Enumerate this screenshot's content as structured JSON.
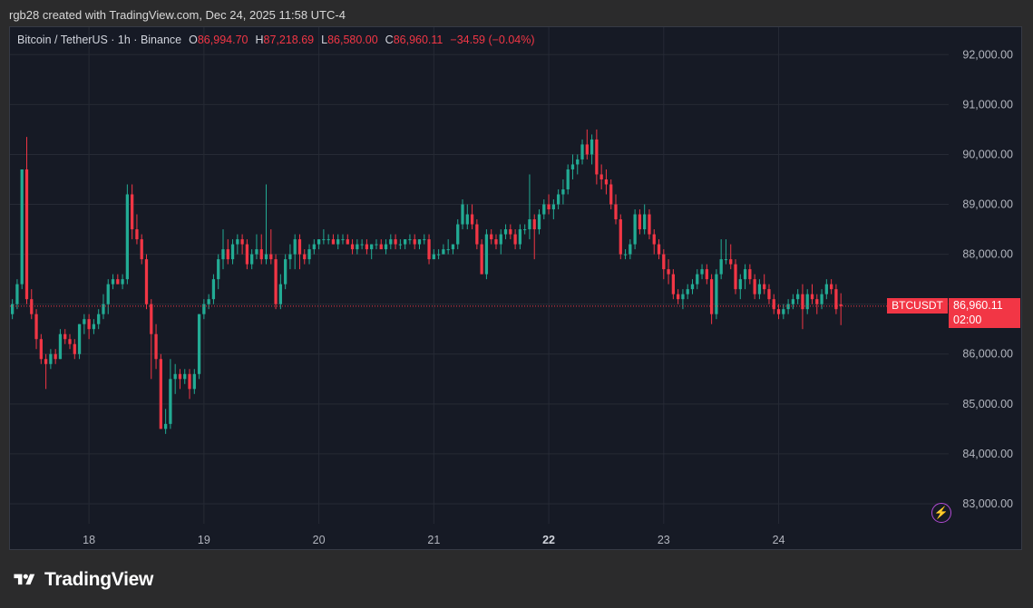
{
  "caption": "rgb28 created with TradingView.com, Dec 24, 2025 11:58 UTC-4",
  "legend": {
    "symbol": "Bitcoin / TetherUS · 1h · Binance",
    "o_label": "O",
    "o_value": "86,994.70",
    "h_label": "H",
    "h_value": "87,218.69",
    "l_label": "L",
    "l_value": "86,580.00",
    "c_label": "C",
    "c_value": "86,960.11",
    "change": "−34.59 (−0.04%)"
  },
  "last_price": {
    "symbol": "BTCUSDT",
    "value": "86,960.11",
    "countdown": "02:00"
  },
  "brand": {
    "name": "TradingView"
  },
  "colors": {
    "up": "#22ab94",
    "down": "#f23645",
    "grid": "#262a35",
    "axis_text": "#b2b5be",
    "background": "#161a25"
  },
  "icons": [
    "tradingview-logo-icon",
    "lightning-bolt-icon"
  ],
  "chart_data": {
    "type": "candlestick",
    "title": "",
    "xlabel": "",
    "ylabel": "",
    "interval": "1h",
    "y_ticks": [
      "83,000.00",
      "84,000.00",
      "85,000.00",
      "86,000.00",
      "87,000.00",
      "88,000.00",
      "89,000.00",
      "90,000.00",
      "91,000.00",
      "92,000.00"
    ],
    "y_tick_values": [
      83000,
      84000,
      85000,
      86000,
      87000,
      88000,
      89000,
      90000,
      91000,
      92000
    ],
    "x_ticks": [
      "18",
      "19",
      "20",
      "21",
      "22",
      "23",
      "24"
    ],
    "x_tick_hours": [
      0,
      24,
      48,
      72,
      96,
      120,
      144
    ],
    "bold_x_tick": "22",
    "ylim": [
      82600,
      92550
    ],
    "xlim_hours": [
      -16.5,
      179.5
    ],
    "last_close": 86960.11,
    "grid": true,
    "legend": "top-left",
    "ohlc": [
      [
        -16,
        86800,
        87100,
        86700,
        87000
      ],
      [
        -15,
        87000,
        87500,
        86900,
        87400
      ],
      [
        -14,
        87400,
        89700,
        87300,
        89700
      ],
      [
        -13,
        89700,
        90350,
        87000,
        87100
      ],
      [
        -12,
        87100,
        87300,
        86700,
        86800
      ],
      [
        -11,
        86800,
        86900,
        86100,
        86300
      ],
      [
        -10,
        86300,
        86400,
        85800,
        85900
      ],
      [
        -9,
        85900,
        86000,
        85300,
        85800
      ],
      [
        -8,
        85800,
        86100,
        85700,
        86000
      ],
      [
        -7,
        86000,
        86100,
        85800,
        85900
      ],
      [
        -6,
        85900,
        86500,
        85900,
        86400
      ],
      [
        -5,
        86400,
        86500,
        86200,
        86300
      ],
      [
        -4,
        86300,
        86400,
        86100,
        86200
      ],
      [
        -3,
        86200,
        86300,
        85900,
        86000
      ],
      [
        -2,
        86000,
        86600,
        85900,
        86600
      ],
      [
        -1,
        86600,
        86800,
        86400,
        86700
      ],
      [
        0,
        86700,
        86800,
        86300,
        86500
      ],
      [
        1,
        86500,
        86700,
        86400,
        86600
      ],
      [
        2,
        86600,
        86900,
        86500,
        86800
      ],
      [
        3,
        86800,
        87200,
        86700,
        87000
      ],
      [
        4,
        87000,
        87500,
        86800,
        87400
      ],
      [
        5,
        87400,
        87600,
        87300,
        87500
      ],
      [
        6,
        87500,
        87600,
        87400,
        87400
      ],
      [
        7,
        87400,
        87600,
        87300,
        87500
      ],
      [
        8,
        87500,
        89400,
        87400,
        89200
      ],
      [
        9,
        89200,
        89400,
        88300,
        88500
      ],
      [
        10,
        88500,
        88800,
        88200,
        88300
      ],
      [
        11,
        88300,
        88400,
        87800,
        87900
      ],
      [
        12,
        87900,
        88000,
        86900,
        87000
      ],
      [
        13,
        87000,
        87100,
        85500,
        86400
      ],
      [
        14,
        86400,
        86600,
        85700,
        85900
      ],
      [
        15,
        85900,
        86000,
        84500,
        84500
      ],
      [
        16,
        84500,
        84900,
        84400,
        84600
      ],
      [
        17,
        84600,
        85900,
        84500,
        85500
      ],
      [
        18,
        85500,
        85800,
        85200,
        85600
      ],
      [
        19,
        85600,
        85700,
        85300,
        85500
      ],
      [
        20,
        85500,
        85700,
        85400,
        85600
      ],
      [
        21,
        85600,
        85700,
        85100,
        85300
      ],
      [
        22,
        85300,
        85700,
        85200,
        85600
      ],
      [
        23,
        85600,
        86800,
        85500,
        86800
      ],
      [
        24,
        86800,
        87100,
        86700,
        87000
      ],
      [
        25,
        87000,
        87200,
        86900,
        87100
      ],
      [
        26,
        87100,
        87600,
        87000,
        87500
      ],
      [
        27,
        87500,
        88000,
        87300,
        87900
      ],
      [
        28,
        87900,
        88500,
        87700,
        88100
      ],
      [
        29,
        88100,
        88300,
        87800,
        87900
      ],
      [
        30,
        87900,
        88300,
        87800,
        88200
      ],
      [
        31,
        88200,
        88400,
        88000,
        88300
      ],
      [
        32,
        88300,
        88400,
        88000,
        88200
      ],
      [
        33,
        88200,
        88300,
        87700,
        87800
      ],
      [
        34,
        87800,
        88100,
        87700,
        88000
      ],
      [
        35,
        88000,
        88400,
        87900,
        88100
      ],
      [
        36,
        88100,
        88400,
        87800,
        87900
      ],
      [
        37,
        87900,
        89400,
        87800,
        88000
      ],
      [
        38,
        88000,
        88500,
        87800,
        87900
      ],
      [
        39,
        87900,
        88000,
        86900,
        87000
      ],
      [
        40,
        87000,
        87600,
        86900,
        87400
      ],
      [
        41,
        87400,
        88000,
        87300,
        87900
      ],
      [
        42,
        87900,
        88200,
        87700,
        88000
      ],
      [
        43,
        88000,
        88400,
        87700,
        88300
      ],
      [
        44,
        88300,
        88400,
        87700,
        88000
      ],
      [
        45,
        88000,
        88100,
        87800,
        87900
      ],
      [
        46,
        87900,
        88200,
        87800,
        88100
      ],
      [
        47,
        88100,
        88300,
        88000,
        88200
      ],
      [
        48,
        88200,
        88300,
        88100,
        88300
      ],
      [
        49,
        88300,
        88500,
        88200,
        88300
      ],
      [
        50,
        88300,
        88400,
        88200,
        88300
      ],
      [
        51,
        88300,
        88400,
        88200,
        88200
      ],
      [
        52,
        88200,
        88400,
        88100,
        88300
      ],
      [
        53,
        88300,
        88400,
        88200,
        88300
      ],
      [
        54,
        88300,
        88400,
        88200,
        88200
      ],
      [
        55,
        88200,
        88300,
        88000,
        88100
      ],
      [
        56,
        88100,
        88300,
        88000,
        88200
      ],
      [
        57,
        88200,
        88300,
        88100,
        88200
      ],
      [
        58,
        88200,
        88300,
        88000,
        88100
      ],
      [
        59,
        88100,
        88200,
        87900,
        88200
      ],
      [
        60,
        88200,
        88300,
        88100,
        88200
      ],
      [
        61,
        88200,
        88300,
        88100,
        88100
      ],
      [
        62,
        88100,
        88300,
        88000,
        88200
      ],
      [
        63,
        88200,
        88400,
        88100,
        88300
      ],
      [
        64,
        88300,
        88400,
        88100,
        88200
      ],
      [
        65,
        88200,
        88300,
        88100,
        88200
      ],
      [
        66,
        88200,
        88300,
        88100,
        88300
      ],
      [
        67,
        88300,
        88400,
        88200,
        88300
      ],
      [
        68,
        88300,
        88400,
        88100,
        88200
      ],
      [
        69,
        88200,
        88300,
        88100,
        88300
      ],
      [
        70,
        88300,
        88400,
        88200,
        88300
      ],
      [
        71,
        88300,
        88400,
        87800,
        87900
      ],
      [
        72,
        87900,
        88100,
        87900,
        88000
      ],
      [
        73,
        88000,
        88100,
        87900,
        88000
      ],
      [
        74,
        88000,
        88200,
        88000,
        88100
      ],
      [
        75,
        88100,
        88300,
        88000,
        88100
      ],
      [
        76,
        88100,
        88200,
        88000,
        88200
      ],
      [
        77,
        88200,
        88700,
        88100,
        88600
      ],
      [
        78,
        88600,
        89100,
        88500,
        89000
      ],
      [
        79,
        88600,
        89000,
        88500,
        88800
      ],
      [
        80,
        88800,
        89000,
        88500,
        88600
      ],
      [
        81,
        88600,
        88700,
        88100,
        88200
      ],
      [
        82,
        88200,
        88300,
        87600,
        87600
      ],
      [
        83,
        87600,
        88500,
        87500,
        88400
      ],
      [
        84,
        88400,
        88500,
        88200,
        88300
      ],
      [
        85,
        88300,
        88400,
        88100,
        88200
      ],
      [
        86,
        88200,
        88500,
        88000,
        88400
      ],
      [
        87,
        88400,
        88600,
        88300,
        88500
      ],
      [
        88,
        88500,
        88600,
        88300,
        88400
      ],
      [
        89,
        88400,
        88500,
        88100,
        88200
      ],
      [
        90,
        88200,
        88600,
        88100,
        88500
      ],
      [
        91,
        88500,
        88600,
        88400,
        88500
      ],
      [
        92,
        88500,
        89600,
        88300,
        88700
      ],
      [
        93,
        88700,
        88800,
        87900,
        88500
      ],
      [
        94,
        88500,
        88900,
        88400,
        88800
      ],
      [
        95,
        88800,
        89100,
        88700,
        89000
      ],
      [
        96,
        89000,
        89200,
        88800,
        88900
      ],
      [
        97,
        88900,
        89100,
        88700,
        89000
      ],
      [
        98,
        89000,
        89300,
        88900,
        89200
      ],
      [
        99,
        89200,
        89500,
        89000,
        89300
      ],
      [
        100,
        89300,
        89800,
        89200,
        89700
      ],
      [
        101,
        89700,
        90000,
        89500,
        89800
      ],
      [
        102,
        89800,
        90000,
        89600,
        89900
      ],
      [
        103,
        89900,
        90300,
        89800,
        90200
      ],
      [
        104,
        90200,
        90500,
        89900,
        90000
      ],
      [
        105,
        90000,
        90400,
        89800,
        90300
      ],
      [
        106,
        90300,
        90500,
        89400,
        89600
      ],
      [
        107,
        89600,
        89800,
        89300,
        89500
      ],
      [
        108,
        89500,
        89700,
        89200,
        89400
      ],
      [
        109,
        89400,
        89500,
        88900,
        89000
      ],
      [
        110,
        89000,
        89200,
        88600,
        88700
      ],
      [
        111,
        88700,
        88800,
        87900,
        88000
      ],
      [
        112,
        88000,
        88100,
        87900,
        88000
      ],
      [
        113,
        88000,
        88300,
        87900,
        88200
      ],
      [
        114,
        88200,
        88900,
        88100,
        88800
      ],
      [
        115,
        88800,
        88900,
        88400,
        88500
      ],
      [
        116,
        88500,
        89000,
        88400,
        88800
      ],
      [
        117,
        88800,
        88900,
        88300,
        88400
      ],
      [
        118,
        88400,
        88500,
        88000,
        88200
      ],
      [
        119,
        88200,
        88300,
        87900,
        88000
      ],
      [
        120,
        88000,
        88100,
        87500,
        87700
      ],
      [
        121,
        87700,
        87900,
        87400,
        87600
      ],
      [
        122,
        87600,
        87700,
        87100,
        87200
      ],
      [
        123,
        87200,
        87300,
        87000,
        87100
      ],
      [
        124,
        87100,
        87300,
        86900,
        87200
      ],
      [
        125,
        87200,
        87400,
        87100,
        87300
      ],
      [
        126,
        87300,
        87500,
        87200,
        87400
      ],
      [
        127,
        87400,
        87700,
        87300,
        87600
      ],
      [
        128,
        87600,
        87800,
        87500,
        87700
      ],
      [
        129,
        87700,
        87800,
        87400,
        87500
      ],
      [
        130,
        87500,
        87600,
        86600,
        86800
      ],
      [
        131,
        86800,
        87700,
        86700,
        87600
      ],
      [
        132,
        87600,
        88300,
        87500,
        87900
      ],
      [
        133,
        87900,
        88300,
        87800,
        87900
      ],
      [
        134,
        87900,
        88200,
        87700,
        87800
      ],
      [
        135,
        87800,
        87900,
        87200,
        87300
      ],
      [
        136,
        87300,
        87600,
        87100,
        87500
      ],
      [
        137,
        87500,
        87800,
        87300,
        87700
      ],
      [
        138,
        87700,
        87800,
        87400,
        87500
      ],
      [
        139,
        87500,
        87600,
        87100,
        87200
      ],
      [
        140,
        87200,
        87500,
        87100,
        87400
      ],
      [
        141,
        87400,
        87600,
        87200,
        87300
      ],
      [
        142,
        87300,
        87400,
        87000,
        87100
      ],
      [
        143,
        87100,
        87200,
        86800,
        86900
      ],
      [
        144,
        86900,
        87000,
        86700,
        86800
      ],
      [
        145,
        86800,
        87000,
        86700,
        86900
      ],
      [
        146,
        86900,
        87100,
        86800,
        87000
      ],
      [
        147,
        87000,
        87200,
        86900,
        87100
      ],
      [
        148,
        87100,
        87300,
        87000,
        87200
      ],
      [
        149,
        87200,
        87400,
        86500,
        86900
      ],
      [
        150,
        86900,
        87300,
        86800,
        87200
      ],
      [
        151,
        87200,
        87400,
        87000,
        87100
      ],
      [
        152,
        87100,
        87200,
        86800,
        87000
      ],
      [
        153,
        87000,
        87300,
        86900,
        87200
      ],
      [
        154,
        87200,
        87500,
        87100,
        87400
      ],
      [
        155,
        87400,
        87500,
        87200,
        87300
      ],
      [
        156,
        87300,
        87400,
        86800,
        86900
      ],
      [
        157,
        86994.7,
        87218.69,
        86580,
        86960.11
      ]
    ]
  }
}
